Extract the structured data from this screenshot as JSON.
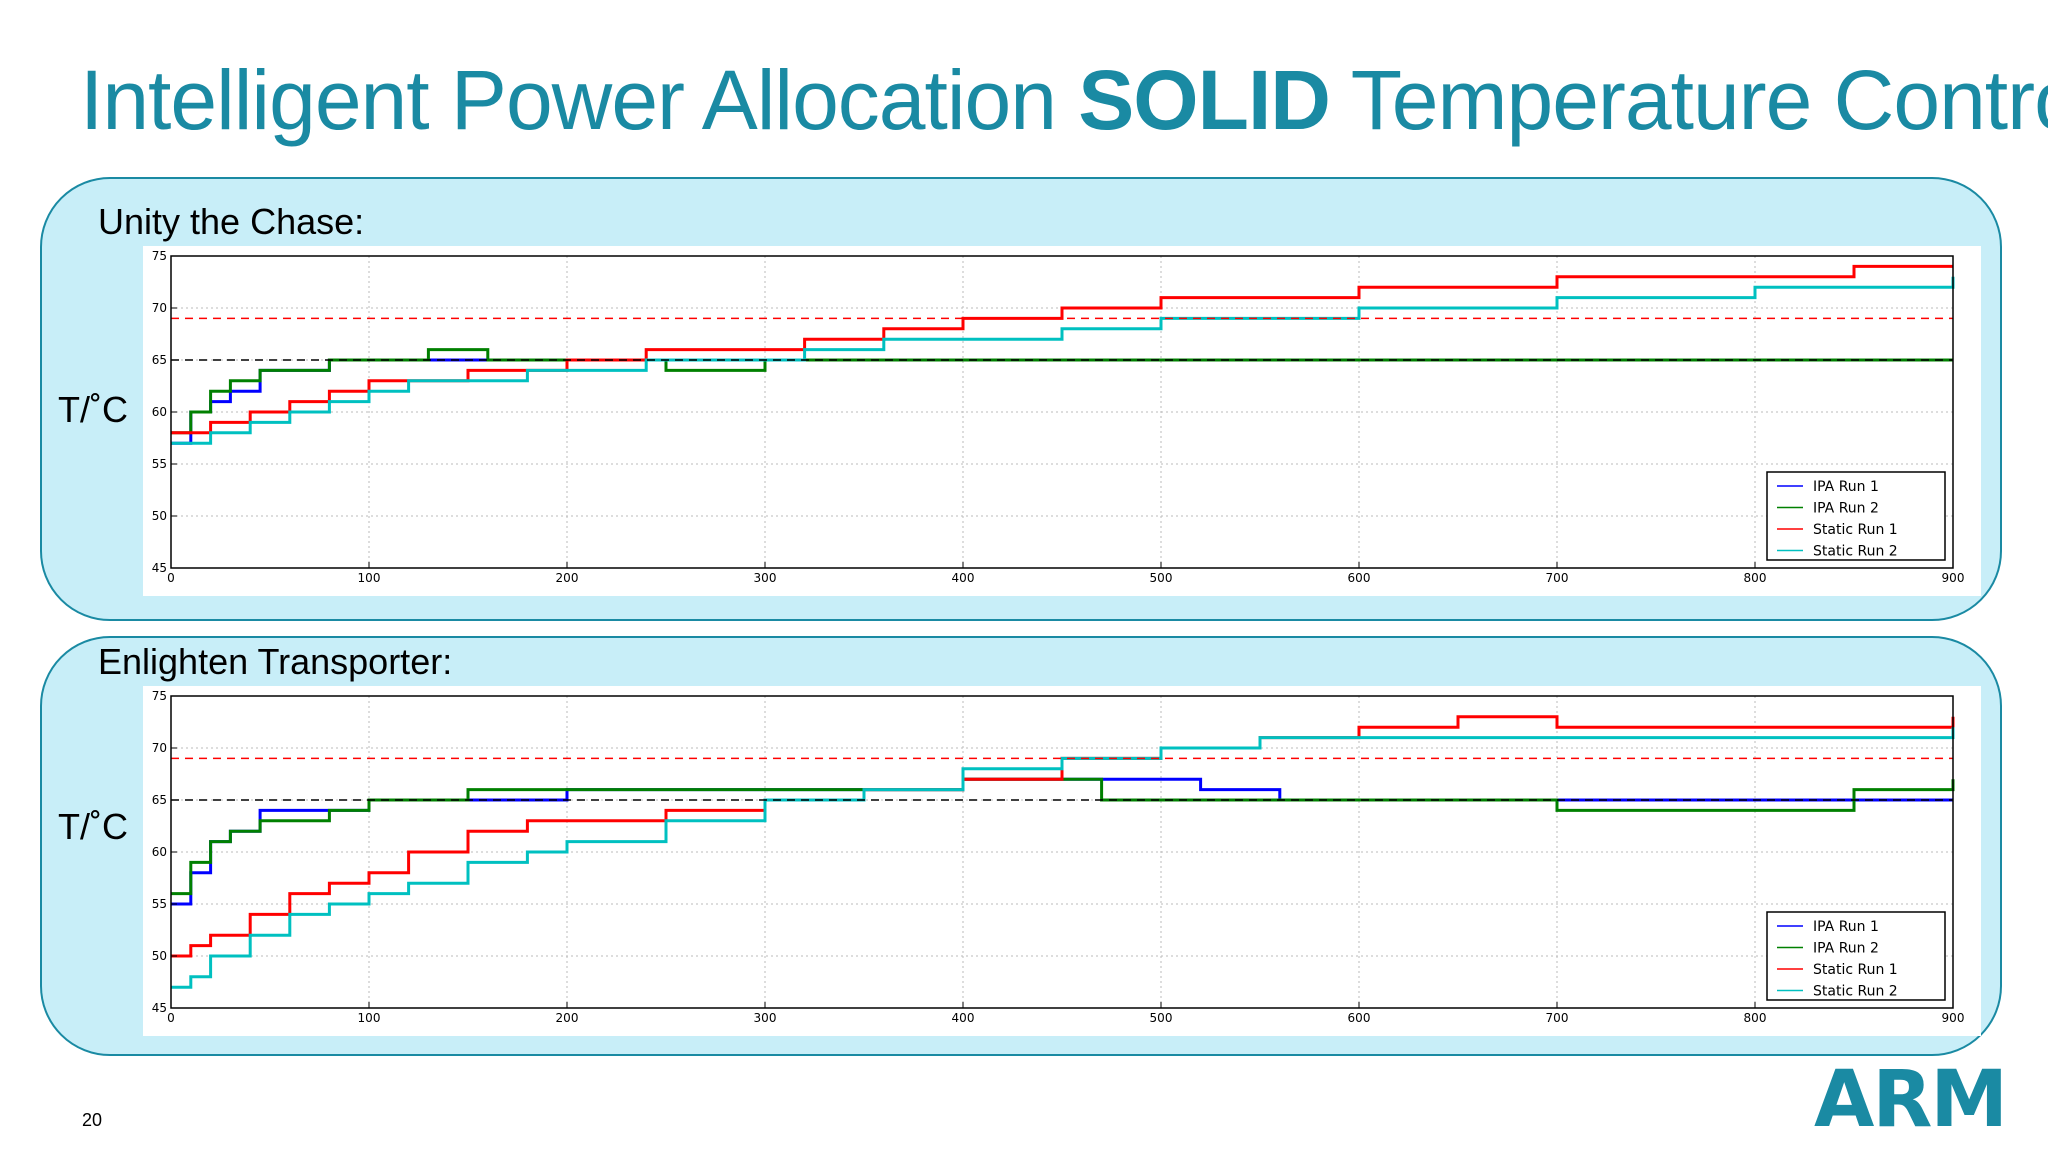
{
  "slide": {
    "title_part1": "Intelligent Power Allocation ",
    "title_bold": "SOLID",
    "title_part2": " Temperature Control",
    "page_number": "20",
    "logo_text": "ARM",
    "brand_color": "#1a8aa3",
    "panel_color": "#c8eef8"
  },
  "panels": [
    {
      "title": "Unity the Chase:",
      "ylabel": "T/˚C"
    },
    {
      "title": "Enlighten Transporter:",
      "ylabel": "T/˚C"
    }
  ],
  "chart_data": [
    {
      "type": "line",
      "title": "Unity the Chase:",
      "ylabel": "T/˚C",
      "xlim": [
        0,
        900
      ],
      "ylim": [
        45,
        75
      ],
      "xticks": [
        0,
        100,
        200,
        300,
        400,
        500,
        600,
        700,
        800,
        900
      ],
      "yticks": [
        45,
        50,
        55,
        60,
        65,
        70,
        75
      ],
      "grid": true,
      "legend_position": "bottom-right",
      "reference_lines": [
        {
          "y": 65,
          "color": "#000000",
          "style": "dashed"
        },
        {
          "y": 69,
          "color": "#ff0000",
          "style": "dashed"
        }
      ],
      "series": [
        {
          "name": "IPA Run 1",
          "color": "#0000ff",
          "x": [
            0,
            10,
            20,
            30,
            45,
            60,
            80,
            100,
            130,
            160,
            200,
            250,
            300,
            350,
            400,
            450,
            500,
            550,
            600,
            650,
            700,
            750,
            800,
            850,
            900
          ],
          "y": [
            57,
            60,
            61,
            62,
            64,
            64,
            65,
            65,
            65,
            65,
            65,
            65,
            65,
            65,
            65,
            65,
            65,
            65,
            65,
            65,
            65,
            65,
            65,
            65,
            65
          ]
        },
        {
          "name": "IPA Run 2",
          "color": "#008000",
          "x": [
            0,
            10,
            20,
            30,
            45,
            60,
            80,
            100,
            130,
            160,
            200,
            250,
            300,
            350,
            400,
            450,
            500,
            550,
            600,
            650,
            700,
            750,
            800,
            850,
            900
          ],
          "y": [
            58,
            60,
            62,
            63,
            64,
            64,
            65,
            65,
            66,
            65,
            65,
            64,
            65,
            65,
            65,
            65,
            65,
            65,
            65,
            65,
            65,
            65,
            65,
            65,
            65
          ]
        },
        {
          "name": "Static Run 1",
          "color": "#ff0000",
          "x": [
            0,
            20,
            40,
            60,
            80,
            100,
            120,
            150,
            180,
            200,
            240,
            280,
            320,
            360,
            400,
            450,
            500,
            550,
            600,
            650,
            700,
            750,
            800,
            850,
            900
          ],
          "y": [
            58,
            59,
            60,
            61,
            62,
            63,
            63,
            64,
            64,
            65,
            66,
            66,
            67,
            68,
            69,
            70,
            71,
            71,
            72,
            72,
            73,
            73,
            73,
            74,
            74
          ]
        },
        {
          "name": "Static Run 2",
          "color": "#00c0c0",
          "x": [
            0,
            20,
            40,
            60,
            80,
            100,
            120,
            150,
            180,
            200,
            240,
            280,
            320,
            360,
            400,
            450,
            500,
            550,
            600,
            650,
            700,
            750,
            800,
            850,
            900
          ],
          "y": [
            57,
            58,
            59,
            60,
            61,
            62,
            63,
            63,
            64,
            64,
            65,
            65,
            66,
            67,
            67,
            68,
            69,
            69,
            70,
            70,
            71,
            71,
            72,
            72,
            73
          ]
        }
      ]
    },
    {
      "type": "line",
      "title": "Enlighten Transporter:",
      "ylabel": "T/˚C",
      "xlim": [
        0,
        900
      ],
      "ylim": [
        45,
        75
      ],
      "xticks": [
        0,
        100,
        200,
        300,
        400,
        500,
        600,
        700,
        800,
        900
      ],
      "yticks": [
        45,
        50,
        55,
        60,
        65,
        70,
        75
      ],
      "grid": true,
      "legend_position": "bottom-right",
      "reference_lines": [
        {
          "y": 65,
          "color": "#000000",
          "style": "dashed"
        },
        {
          "y": 69,
          "color": "#ff0000",
          "style": "dashed"
        }
      ],
      "series": [
        {
          "name": "IPA Run 1",
          "color": "#0000ff",
          "x": [
            0,
            10,
            20,
            30,
            45,
            60,
            80,
            100,
            150,
            200,
            250,
            300,
            350,
            400,
            450,
            500,
            520,
            560,
            600,
            700,
            800,
            900
          ],
          "y": [
            55,
            58,
            61,
            62,
            64,
            64,
            64,
            65,
            65,
            66,
            66,
            66,
            66,
            67,
            67,
            67,
            66,
            65,
            65,
            65,
            65,
            65
          ]
        },
        {
          "name": "IPA Run 2",
          "color": "#008000",
          "x": [
            0,
            10,
            20,
            30,
            45,
            60,
            80,
            100,
            150,
            200,
            250,
            300,
            350,
            400,
            450,
            470,
            520,
            600,
            700,
            800,
            840,
            850,
            900
          ],
          "y": [
            56,
            59,
            61,
            62,
            63,
            63,
            64,
            65,
            66,
            66,
            66,
            66,
            66,
            67,
            67,
            65,
            65,
            65,
            64,
            64,
            64,
            66,
            67
          ]
        },
        {
          "name": "Static Run 1",
          "color": "#ff0000",
          "x": [
            0,
            10,
            20,
            40,
            60,
            80,
            100,
            120,
            150,
            180,
            200,
            250,
            300,
            350,
            400,
            450,
            500,
            550,
            600,
            650,
            700,
            800,
            900
          ],
          "y": [
            50,
            51,
            52,
            54,
            56,
            57,
            58,
            60,
            62,
            63,
            63,
            64,
            65,
            66,
            67,
            69,
            70,
            71,
            72,
            73,
            72,
            72,
            73
          ]
        },
        {
          "name": "Static Run 2",
          "color": "#00c0c0",
          "x": [
            0,
            10,
            20,
            40,
            60,
            80,
            100,
            120,
            150,
            180,
            200,
            250,
            300,
            350,
            400,
            450,
            500,
            550,
            600,
            650,
            700,
            800,
            900
          ],
          "y": [
            47,
            48,
            50,
            52,
            54,
            55,
            56,
            57,
            59,
            60,
            61,
            63,
            65,
            66,
            68,
            69,
            70,
            71,
            71,
            71,
            71,
            71,
            72
          ]
        }
      ]
    }
  ]
}
